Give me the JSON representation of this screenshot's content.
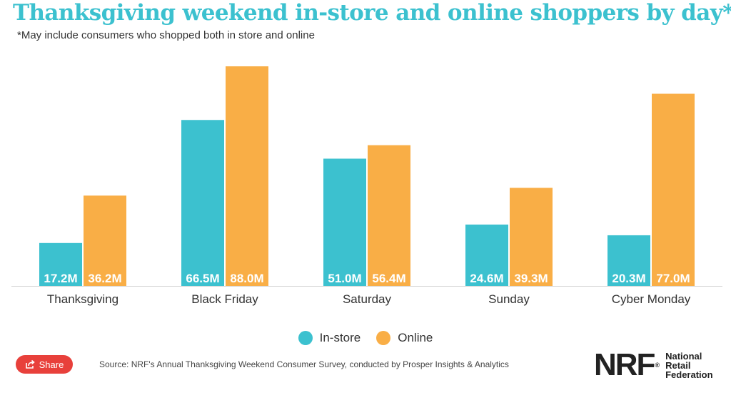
{
  "chart_data": {
    "type": "bar",
    "title": "Thanksgiving weekend in-store and online shoppers by day*",
    "subtitle": "*May include consumers who shopped both in store and online",
    "categories": [
      "Thanksgiving",
      "Black Friday",
      "Saturday",
      "Sunday",
      "Cyber Monday"
    ],
    "series": [
      {
        "name": "In-store",
        "color": "#3cc1cf",
        "values": [
          17.2,
          66.5,
          51.0,
          24.6,
          20.3
        ],
        "labels": [
          "17.2M",
          "66.5M",
          "51.0M",
          "24.6M",
          "20.3M"
        ]
      },
      {
        "name": "Online",
        "color": "#f9ae46",
        "values": [
          36.2,
          88.0,
          56.4,
          39.3,
          77.0
        ],
        "labels": [
          "36.2M",
          "88.0M",
          "56.4M",
          "39.3M",
          "77.0M"
        ]
      }
    ],
    "ylim": [
      0,
      88.0
    ],
    "grid": false,
    "legend_position": "bottom-center",
    "xlabel": "",
    "ylabel": ""
  },
  "share": {
    "label": "Share",
    "icon": "share-icon"
  },
  "source": "Source: NRF's Annual Thanksgiving Weekend Consumer Survey, conducted by Prosper Insights & Analytics",
  "logo": {
    "mark": "NRF",
    "mark_sup": "®",
    "lines": [
      "National",
      "Retail",
      "Federation"
    ]
  }
}
